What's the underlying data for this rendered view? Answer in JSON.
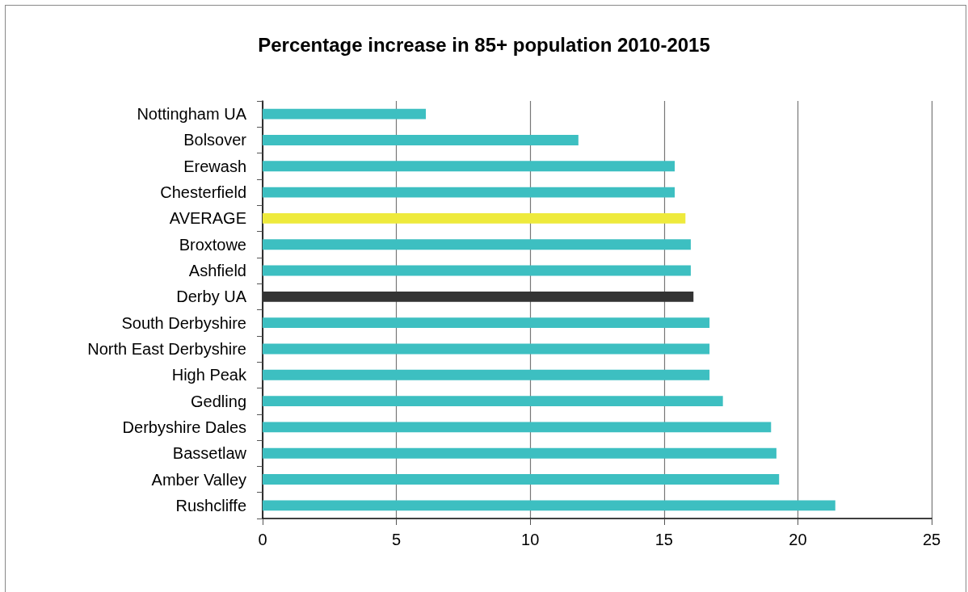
{
  "chart_data": {
    "type": "bar",
    "orientation": "horizontal",
    "title": "Percentage increase in 85+ population 2010-2015",
    "categories": [
      "Nottingham UA",
      "Bolsover",
      "Erewash",
      "Chesterfield",
      "AVERAGE",
      "Broxtowe",
      "Ashfield",
      "Derby UA",
      "South Derbyshire",
      "North East Derbyshire",
      "High Peak",
      "Gedling",
      "Derbyshire Dales",
      "Bassetlaw",
      "Amber Valley",
      "Rushcliffe"
    ],
    "values": [
      6.1,
      11.8,
      15.4,
      15.4,
      15.8,
      16.0,
      16.0,
      16.1,
      16.7,
      16.7,
      16.7,
      17.2,
      19.0,
      19.2,
      19.3,
      21.4
    ],
    "colors": [
      "#3dbfc1",
      "#3dbfc1",
      "#3dbfc1",
      "#3dbfc1",
      "#eeea3c",
      "#3dbfc1",
      "#3dbfc1",
      "#333333",
      "#3dbfc1",
      "#3dbfc1",
      "#3dbfc1",
      "#3dbfc1",
      "#3dbfc1",
      "#3dbfc1",
      "#3dbfc1",
      "#3dbfc1"
    ],
    "xlim": [
      0,
      25
    ],
    "xticks": [
      0,
      5,
      10,
      15,
      20,
      25
    ],
    "grid": "x"
  }
}
